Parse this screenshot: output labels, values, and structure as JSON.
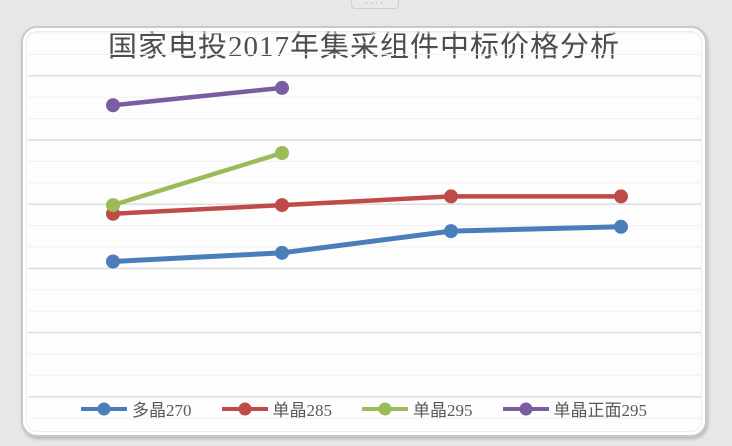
{
  "decorations": {
    "top_dots": "····"
  },
  "card": {
    "background": "#fdfdfd",
    "frame_color": "#c9c9c9",
    "outer_background": "#e7e7e7"
  },
  "chart_data": {
    "type": "line",
    "title": "国家电投2017年集采组件中标价格分析",
    "title_color": "#4d4d4d",
    "xlabel": "",
    "ylabel": "",
    "x": [
      1,
      2,
      3,
      4
    ],
    "x_axis_labels_visible": false,
    "y_axis_labels_visible": false,
    "values_estimated_from_pixels": true,
    "ylim": [
      2.4,
      3.35
    ],
    "grid": true,
    "gridline_minor_color": "#f0f0f0",
    "gridline_major_color": "#dcdcdc",
    "legend_position": "bottom",
    "legend_text_color": "#595959",
    "marker": "circle",
    "series": [
      {
        "name": "多晶270",
        "color": "#4a7ebb",
        "values": [
          2.65,
          2.67,
          2.72,
          2.73
        ]
      },
      {
        "name": "单晶285",
        "color": "#bf4b48",
        "values": [
          2.76,
          2.78,
          2.8,
          2.8
        ]
      },
      {
        "name": "单晶295",
        "color": "#9bbb59",
        "values": [
          2.78,
          2.9,
          null,
          null
        ]
      },
      {
        "name": "单晶正面295",
        "color": "#7a5ca1",
        "values": [
          3.01,
          3.05,
          null,
          null
        ]
      }
    ]
  }
}
